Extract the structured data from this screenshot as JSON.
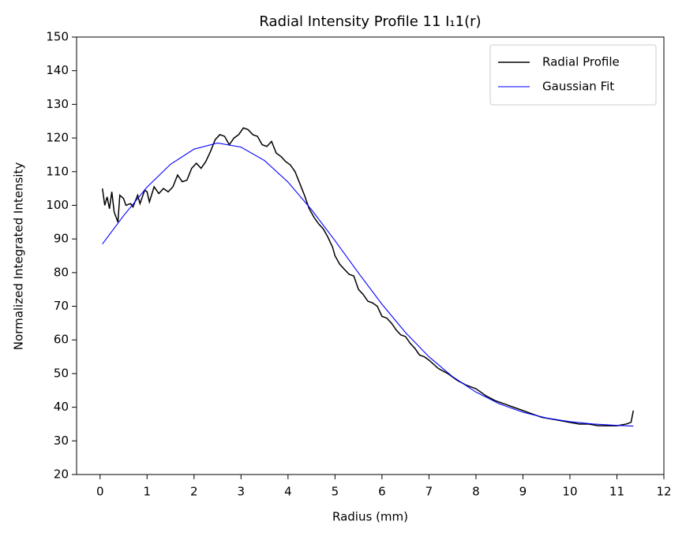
{
  "chart_data": {
    "type": "line",
    "title": "Radial Intensity Profile 11 I₁1(r)",
    "xlabel": "Radius (mm)",
    "ylabel": "Normalized Integrated Intensity",
    "xlim": [
      -0.5,
      12
    ],
    "ylim": [
      20,
      150
    ],
    "xticks": [
      0,
      1,
      2,
      3,
      4,
      5,
      6,
      7,
      8,
      9,
      10,
      11,
      12
    ],
    "yticks": [
      20,
      30,
      40,
      50,
      60,
      70,
      80,
      90,
      100,
      110,
      120,
      130,
      140,
      150
    ],
    "legend": "upper right",
    "series": [
      {
        "name": "Radial Profile",
        "color": "#000000",
        "x": [
          0.05,
          0.1,
          0.15,
          0.2,
          0.25,
          0.3,
          0.38,
          0.42,
          0.5,
          0.55,
          0.65,
          0.7,
          0.8,
          0.85,
          0.95,
          1.0,
          1.05,
          1.15,
          1.25,
          1.35,
          1.45,
          1.55,
          1.65,
          1.75,
          1.85,
          1.95,
          2.05,
          2.15,
          2.25,
          2.35,
          2.45,
          2.55,
          2.65,
          2.75,
          2.85,
          2.95,
          3.05,
          3.15,
          3.25,
          3.35,
          3.45,
          3.55,
          3.65,
          3.75,
          3.85,
          3.95,
          4.05,
          4.15,
          4.25,
          4.35,
          4.45,
          4.55,
          4.65,
          4.75,
          4.85,
          4.95,
          5.0,
          5.1,
          5.2,
          5.3,
          5.4,
          5.5,
          5.6,
          5.7,
          5.8,
          5.9,
          6.0,
          6.1,
          6.2,
          6.3,
          6.4,
          6.5,
          6.6,
          6.7,
          6.8,
          6.9,
          7.0,
          7.2,
          7.4,
          7.6,
          7.8,
          8.0,
          8.2,
          8.4,
          8.6,
          8.8,
          9.0,
          9.2,
          9.4,
          9.6,
          9.8,
          10.0,
          10.2,
          10.4,
          10.6,
          10.8,
          11.0,
          11.2,
          11.3,
          11.35
        ],
        "values": [
          105,
          100,
          102.5,
          99,
          104,
          98,
          95,
          103,
          102,
          100,
          100.5,
          99.5,
          103,
          100.5,
          104.5,
          104,
          101,
          105.5,
          103.5,
          105,
          104,
          105.5,
          109,
          107,
          107.5,
          111,
          112.5,
          111,
          113,
          116,
          119.5,
          121,
          120.5,
          118,
          120,
          121,
          123,
          122.5,
          121,
          120.5,
          118,
          117.5,
          119,
          115.5,
          114.5,
          113,
          112,
          110,
          106.5,
          103,
          99,
          96.5,
          94.5,
          93,
          90.5,
          87.5,
          85,
          82.5,
          81,
          79.5,
          79,
          75,
          73.5,
          71.5,
          71,
          70,
          67,
          66.5,
          65,
          63,
          61.5,
          61,
          59,
          57.5,
          55.5,
          55,
          54,
          51.5,
          50,
          48,
          46.5,
          45.5,
          43.5,
          42,
          41,
          40,
          39,
          38,
          37,
          36.5,
          36,
          35.5,
          35,
          35,
          34.5,
          34.5,
          34.5,
          35,
          35.5,
          39
        ]
      },
      {
        "name": "Gaussian Fit",
        "color": "#0000ff",
        "x": [
          0.05,
          0.5,
          1.0,
          1.5,
          2.0,
          2.5,
          3.0,
          3.5,
          4.0,
          4.5,
          5.0,
          5.5,
          6.0,
          6.5,
          7.0,
          7.5,
          8.0,
          8.5,
          9.0,
          9.5,
          10.0,
          10.5,
          11.0,
          11.35
        ],
        "values": [
          88.5,
          96.9,
          105.4,
          112.2,
          116.7,
          118.5,
          117.3,
          113.3,
          106.9,
          98.7,
          89.5,
          79.9,
          70.6,
          62.2,
          55.0,
          49.1,
          44.5,
          41.0,
          38.5,
          36.8,
          35.7,
          35.0,
          34.6,
          34.4
        ]
      }
    ]
  }
}
